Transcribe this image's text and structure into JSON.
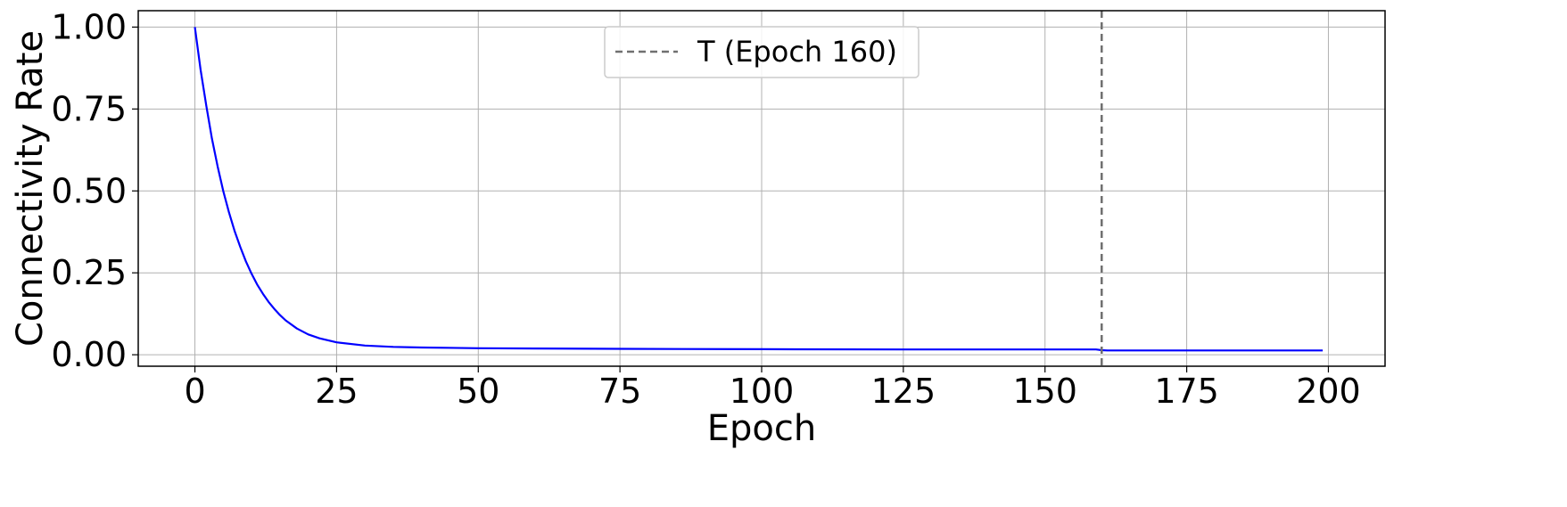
{
  "chart_data": {
    "type": "line",
    "title": "",
    "xlabel": "Epoch",
    "ylabel": "Connectivity Rate",
    "xlim": [
      -10,
      210
    ],
    "ylim": [
      -0.035,
      1.05
    ],
    "xticks": [
      0,
      25,
      50,
      75,
      100,
      125,
      150,
      175,
      200
    ],
    "xtick_labels": [
      "0",
      "25",
      "50",
      "75",
      "100",
      "125",
      "150",
      "175",
      "200"
    ],
    "yticks": [
      0.0,
      0.25,
      0.5,
      0.75,
      1.0
    ],
    "ytick_labels": [
      "0.00",
      "0.25",
      "0.50",
      "0.75",
      "1.00"
    ],
    "grid": true,
    "legend": {
      "position": "top-center",
      "entries": [
        "T (Epoch 160)"
      ]
    },
    "series": [
      {
        "color": "#0000ff",
        "x": [
          0,
          1,
          2,
          3,
          4,
          5,
          6,
          7,
          8,
          9,
          10,
          11,
          12,
          13,
          14,
          15,
          16,
          18,
          20,
          22,
          25,
          30,
          35,
          40,
          50,
          60,
          75,
          100,
          125,
          150,
          159,
          160,
          161,
          175,
          199
        ],
        "y": [
          1.0,
          0.87,
          0.76,
          0.66,
          0.575,
          0.5,
          0.435,
          0.378,
          0.329,
          0.285,
          0.247,
          0.214,
          0.186,
          0.161,
          0.14,
          0.121,
          0.105,
          0.08,
          0.062,
          0.05,
          0.038,
          0.028,
          0.024,
          0.022,
          0.02,
          0.019,
          0.018,
          0.017,
          0.016,
          0.016,
          0.016,
          0.014,
          0.013,
          0.013,
          0.013
        ]
      }
    ],
    "vlines": [
      {
        "x": 160,
        "label": "T (Epoch 160)",
        "color": "#707070",
        "style": "dashed"
      }
    ]
  }
}
